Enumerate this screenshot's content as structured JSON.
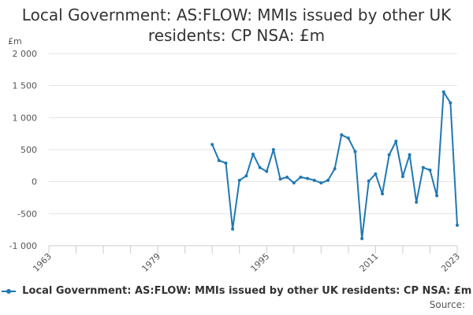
{
  "chart_data": {
    "type": "line",
    "title": "Local Government: AS:FLOW: MMIs issued by other UK residents: CP NSA: £m",
    "ylabel": "£m",
    "xlabel": "",
    "xlim": [
      1963,
      2023
    ],
    "ylim": [
      -1000,
      2000
    ],
    "x_ticks": [
      1963,
      1967,
      1971,
      1975,
      1979,
      1983,
      1987,
      1991,
      1995,
      1999,
      2003,
      2007,
      2011,
      2015,
      2019,
      2023
    ],
    "x_tick_labels": [
      {
        "value": 1963,
        "label": "1963"
      },
      {
        "value": 1979,
        "label": "1979"
      },
      {
        "value": 1995,
        "label": "1995"
      },
      {
        "value": 2011,
        "label": "2011"
      },
      {
        "value": 2023,
        "label": "2023"
      }
    ],
    "y_ticks": [
      {
        "value": 2000,
        "label": "2 000"
      },
      {
        "value": 1500,
        "label": "1 500"
      },
      {
        "value": 1000,
        "label": "1 000"
      },
      {
        "value": 500,
        "label": "500"
      },
      {
        "value": 0,
        "label": "0"
      },
      {
        "value": -500,
        "label": "-500"
      },
      {
        "value": -1000,
        "label": "-1 000"
      }
    ],
    "grid": true,
    "legend_position": "bottom",
    "color": "#1f78b4",
    "series": [
      {
        "name": "Local Government: AS:FLOW: MMIs issued by other UK residents: CP NSA: £m",
        "x": [
          1987,
          1988,
          1989,
          1990,
          1991,
          1992,
          1993,
          1994,
          1995,
          1996,
          1997,
          1998,
          1999,
          2000,
          2001,
          2002,
          2003,
          2004,
          2005,
          2006,
          2007,
          2008,
          2009,
          2010,
          2011,
          2012,
          2013,
          2014,
          2015,
          2016,
          2017,
          2018,
          2019,
          2020,
          2021,
          2022,
          2023
        ],
        "y": [
          580,
          330,
          290,
          -740,
          20,
          90,
          430,
          220,
          160,
          500,
          40,
          70,
          -20,
          70,
          50,
          20,
          -20,
          20,
          200,
          730,
          680,
          470,
          -890,
          10,
          120,
          -190,
          420,
          630,
          80,
          420,
          -320,
          220,
          180,
          -220,
          1400,
          1230,
          -680
        ]
      }
    ]
  },
  "legend": {
    "label": "Local Government: AS:FLOW: MMIs issued by other UK residents: CP NSA: £m"
  },
  "source": {
    "label": "Source:"
  }
}
